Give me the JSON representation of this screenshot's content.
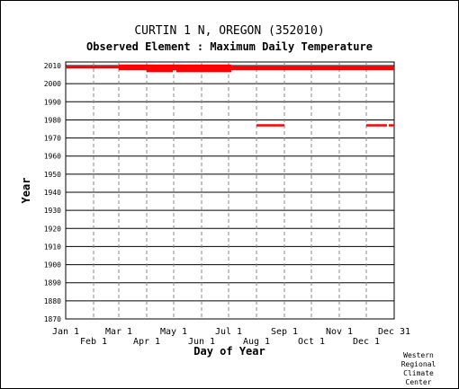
{
  "chart_data": {
    "type": "scatter",
    "title": "CURTIN 1 N, OREGON   (352010)",
    "subtitle": "Observed Element : Maximum Daily Temperature",
    "xlabel": "Day of Year",
    "ylabel": "Year",
    "xlim": [
      1,
      366
    ],
    "ylim": [
      1870,
      2012
    ],
    "grid": true,
    "x_ticks": [
      {
        "label": "Jan 1",
        "day": 1
      },
      {
        "label": "Feb 1",
        "day": 32
      },
      {
        "label": "Mar 1",
        "day": 60
      },
      {
        "label": "Apr 1",
        "day": 91
      },
      {
        "label": "May 1",
        "day": 121
      },
      {
        "label": "Jun 1",
        "day": 152
      },
      {
        "label": "Jul 1",
        "day": 182
      },
      {
        "label": "Aug 1",
        "day": 213
      },
      {
        "label": "Sep 1",
        "day": 244
      },
      {
        "label": "Oct 1",
        "day": 274
      },
      {
        "label": "Nov 1",
        "day": 305
      },
      {
        "label": "Dec 1",
        "day": 335
      },
      {
        "label": "Dec 31",
        "day": 366
      }
    ],
    "y_ticks": [
      1870,
      1880,
      1890,
      1900,
      1910,
      1920,
      1930,
      1940,
      1950,
      1960,
      1970,
      1980,
      1990,
      2000,
      2010
    ],
    "series": [
      {
        "color": "#ff0000",
        "segments": [
          {
            "year": 2009,
            "start_day": 1,
            "end_day": 366
          },
          {
            "year": 2008,
            "start_day": 60,
            "end_day": 366
          },
          {
            "year": 2010,
            "start_day": 60,
            "end_day": 185
          },
          {
            "year": 2007,
            "start_day": 91,
            "end_day": 120
          },
          {
            "year": 2007,
            "start_day": 124,
            "end_day": 185
          },
          {
            "year": 1977,
            "start_day": 213,
            "end_day": 244
          },
          {
            "year": 1977,
            "start_day": 335,
            "end_day": 358
          },
          {
            "year": 1977,
            "start_day": 360,
            "end_day": 366
          }
        ]
      }
    ]
  },
  "credit": "Western\nRegional\nClimate\nCenter"
}
